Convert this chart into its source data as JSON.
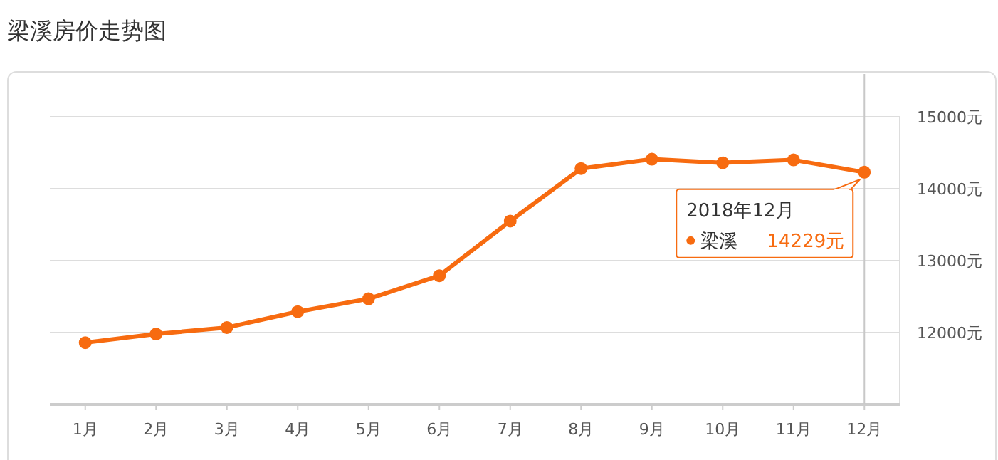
{
  "chart_data": {
    "type": "line",
    "title": "梁溪房价走势图",
    "categories": [
      "1月",
      "2月",
      "3月",
      "4月",
      "5月",
      "6月",
      "7月",
      "8月",
      "9月",
      "10月",
      "11月",
      "12月"
    ],
    "series": [
      {
        "name": "梁溪",
        "color": "#f76b10",
        "values": [
          11860,
          11980,
          12070,
          12290,
          12470,
          12790,
          13550,
          14280,
          14410,
          14360,
          14400,
          14229
        ],
        "value_labels": [
          null,
          null,
          null,
          null,
          null,
          null,
          null,
          null,
          null,
          null,
          null,
          "14229元"
        ]
      }
    ],
    "ylim": [
      11000,
      15000
    ],
    "yticks": [
      {
        "value": 12000,
        "label": "12000元"
      },
      {
        "value": 13000,
        "label": "13000元"
      },
      {
        "value": 14000,
        "label": "14000元"
      },
      {
        "value": 15000,
        "label": "15000元"
      }
    ],
    "grid": "y",
    "marker": "circle",
    "line_style": "solid",
    "ref_lines": [
      {
        "axis": "x",
        "value": "12月",
        "color": "#c8c8c8"
      }
    ],
    "annotations": [
      "2018年12月"
    ]
  }
}
